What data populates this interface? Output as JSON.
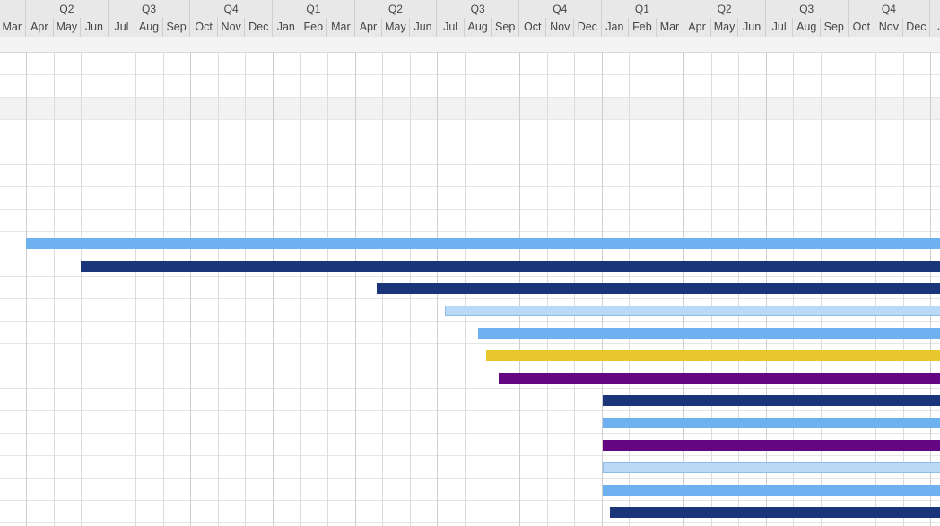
{
  "timeline": {
    "quarters": [
      {
        "label": "Q2",
        "months": 3
      },
      {
        "label": "Q3",
        "months": 3
      },
      {
        "label": "Q4",
        "months": 3
      },
      {
        "label": "Q1",
        "months": 3
      },
      {
        "label": "Q2",
        "months": 3
      },
      {
        "label": "Q3",
        "months": 3
      },
      {
        "label": "Q4",
        "months": 3
      },
      {
        "label": "Q1",
        "months": 3
      },
      {
        "label": "Q2",
        "months": 3
      },
      {
        "label": "Q3",
        "months": 3
      },
      {
        "label": "Q4",
        "months": 3
      }
    ],
    "months": [
      "Mar",
      "Apr",
      "May",
      "Jun",
      "Jul",
      "Aug",
      "Sep",
      "Oct",
      "Nov",
      "Dec",
      "Jan",
      "Feb",
      "Mar",
      "Apr",
      "May",
      "Jun",
      "Jul",
      "Aug",
      "Sep",
      "Oct",
      "Nov",
      "Dec",
      "Jan",
      "Feb",
      "Mar",
      "Apr",
      "May",
      "Jun",
      "Jul",
      "Aug",
      "Sep",
      "Oct",
      "Nov",
      "Dec",
      "Ja"
    ]
  },
  "colors": {
    "light_blue": "#6eb1f0",
    "navy": "#1a357a",
    "pale_blue": "#b9d9f7",
    "gold": "#e8c72e",
    "purple": "#650683"
  },
  "tasks": [
    {
      "row": 8,
      "start_month": 1.0,
      "color": "light_blue"
    },
    {
      "row": 9,
      "start_month": 3.0,
      "color": "navy"
    },
    {
      "row": 10,
      "start_month": 13.8,
      "color": "navy"
    },
    {
      "row": 11,
      "start_month": 16.3,
      "color": "pale_blue"
    },
    {
      "row": 12,
      "start_month": 17.5,
      "color": "light_blue"
    },
    {
      "row": 13,
      "start_month": 17.8,
      "color": "gold"
    },
    {
      "row": 14,
      "start_month": 18.25,
      "color": "purple"
    },
    {
      "row": 15,
      "start_month": 22.05,
      "color": "navy"
    },
    {
      "row": 16,
      "start_month": 22.05,
      "color": "light_blue"
    },
    {
      "row": 17,
      "start_month": 22.05,
      "color": "purple"
    },
    {
      "row": 18,
      "start_month": 22.05,
      "color": "pale_blue"
    },
    {
      "row": 19,
      "start_month": 22.05,
      "color": "light_blue"
    },
    {
      "row": 20,
      "start_month": 22.3,
      "color": "navy"
    }
  ],
  "highlighted_row": 2
}
